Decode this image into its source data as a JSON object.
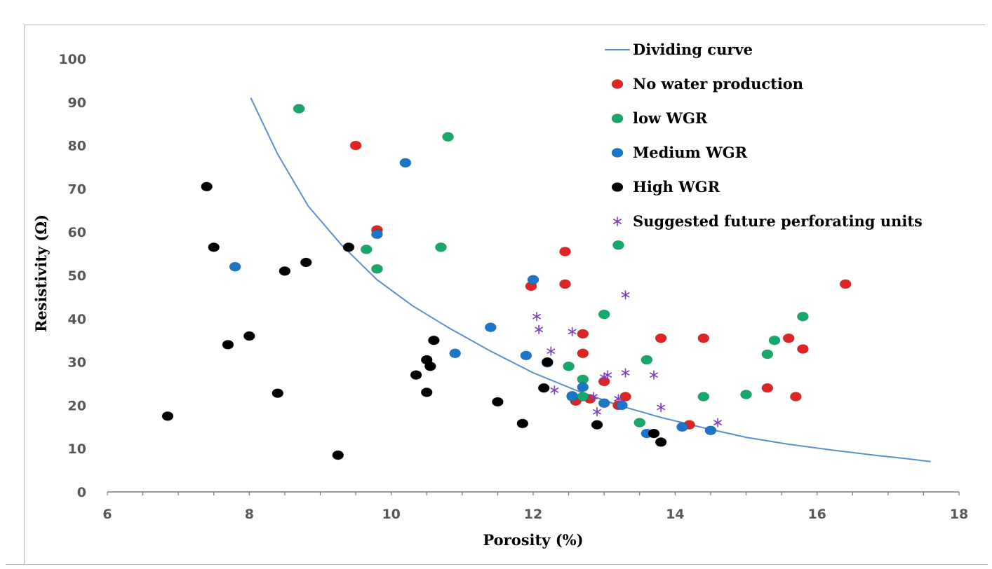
{
  "chart_data": {
    "type": "scatter",
    "title": "",
    "xlabel": "Porosity (%)",
    "ylabel": "Resistivity (Ω)",
    "xlim": [
      6,
      18
    ],
    "ylim": [
      0,
      100
    ],
    "xticks": [
      6,
      8,
      10,
      12,
      14,
      16,
      18
    ],
    "yticks": [
      0,
      10,
      20,
      30,
      40,
      50,
      60,
      70,
      80,
      90,
      100
    ],
    "grid": false,
    "legend_position": "top-right",
    "series": [
      {
        "name": "Dividing curve",
        "kind": "line",
        "color": "#5b8fce",
        "x": [
          8.02,
          8.4,
          8.83,
          9.3,
          9.8,
          10.3,
          10.8,
          11.4,
          12.0,
          12.6,
          13.2,
          13.8,
          14.4,
          15.0,
          15.6,
          16.2,
          16.8,
          17.3,
          17.6
        ],
        "y": [
          91,
          78,
          66,
          57,
          49,
          43,
          38,
          32.5,
          27.5,
          23.5,
          20,
          17.2,
          14.8,
          12.6,
          11,
          9.7,
          8.5,
          7.6,
          7
        ]
      },
      {
        "name": "No water production",
        "kind": "point",
        "marker": "dot",
        "color": "#e02424",
        "x": [
          9.5,
          9.8,
          11.97,
          12.45,
          12.45,
          12.7,
          12.7,
          12.6,
          12.8,
          13.0,
          13.2,
          13.3,
          13.8,
          14.2,
          14.4,
          15.3,
          15.6,
          15.7,
          15.8,
          16.4
        ],
        "y": [
          80,
          60.5,
          47.5,
          55.5,
          48,
          36.5,
          32,
          21,
          21.5,
          25.5,
          20,
          22,
          35.5,
          15.5,
          35.5,
          24,
          35.5,
          22,
          33,
          48
        ]
      },
      {
        "name": "low WGR",
        "kind": "point",
        "marker": "dot",
        "color": "#17a86b",
        "x": [
          8.7,
          10.8,
          9.65,
          9.8,
          10.7,
          13.2,
          13.0,
          12.5,
          12.7,
          12.55,
          12.7,
          13.6,
          13.5,
          14.4,
          15.0,
          15.3,
          15.4,
          15.8
        ],
        "y": [
          88.5,
          82,
          56,
          51.5,
          56.5,
          57,
          41,
          29,
          26,
          22,
          22,
          30.5,
          16,
          22,
          22.5,
          31.8,
          35,
          40.5
        ]
      },
      {
        "name": "Medium WGR",
        "kind": "point",
        "marker": "dot",
        "color": "#1b75c9",
        "x": [
          10.2,
          9.8,
          7.8,
          12.0,
          11.4,
          10.9,
          11.9,
          12.2,
          12.55,
          12.7,
          13.0,
          13.25,
          13.6,
          14.1,
          14.5
        ],
        "y": [
          76,
          59.5,
          52,
          49,
          38,
          32,
          31.5,
          29.8,
          22.2,
          24.2,
          20.5,
          20,
          13.5,
          15,
          14.2
        ]
      },
      {
        "name": "High WGR",
        "kind": "point",
        "marker": "dot",
        "color": "#000000",
        "x": [
          6.85,
          7.4,
          7.5,
          7.7,
          8.0,
          8.4,
          8.5,
          8.8,
          9.25,
          9.4,
          10.35,
          10.5,
          10.5,
          10.55,
          10.6,
          11.5,
          11.85,
          12.15,
          12.2,
          12.9,
          13.7,
          13.8
        ],
        "y": [
          17.5,
          70.5,
          56.5,
          34,
          36,
          22.8,
          51,
          53,
          8.5,
          56.5,
          27,
          30.5,
          23,
          29,
          35,
          20.8,
          15.8,
          24,
          30,
          15.5,
          13.5,
          11.5
        ]
      },
      {
        "name": "Suggested future perforating units",
        "kind": "point",
        "marker": "asterisk",
        "color": "#7b3fbf",
        "x": [
          12.05,
          12.08,
          12.25,
          12.3,
          12.55,
          12.85,
          12.9,
          13.0,
          13.05,
          13.2,
          13.3,
          13.3,
          13.7,
          13.8,
          14.6
        ],
        "y": [
          40.5,
          37.5,
          32.5,
          23.5,
          37,
          22,
          18.5,
          26.5,
          27,
          21.5,
          45.5,
          27.5,
          27,
          19.5,
          16
        ]
      }
    ]
  }
}
